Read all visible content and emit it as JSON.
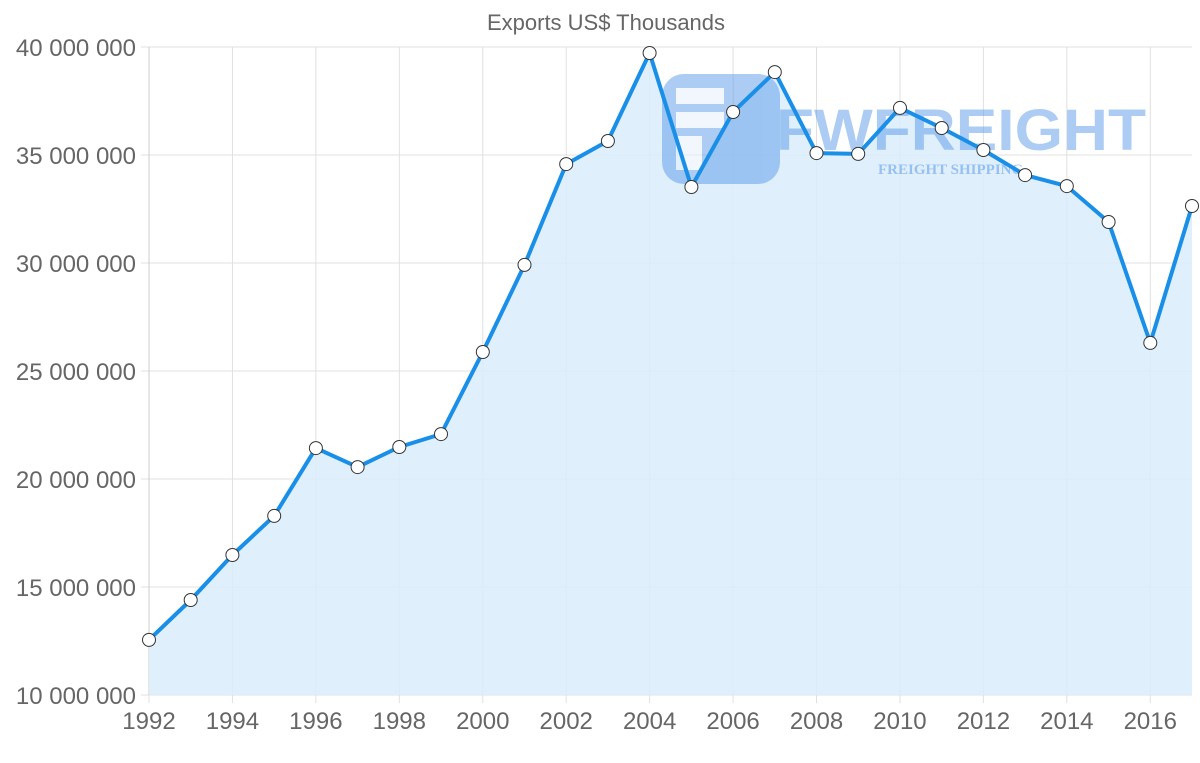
{
  "chart_data": {
    "type": "area",
    "title": "Exports US$ Thousands",
    "xlabel": "",
    "ylabel": "",
    "x": [
      1992,
      1993,
      1994,
      1995,
      1996,
      1997,
      1998,
      1999,
      2000,
      2001,
      2002,
      2003,
      2004,
      2005,
      2006,
      2007,
      2008,
      2009,
      2010,
      2011,
      2012,
      2013,
      2014,
      2015,
      2016,
      2017
    ],
    "series": [
      {
        "name": "Exports US$ Thousands",
        "values": [
          12550000,
          14400000,
          16480000,
          18290000,
          21430000,
          20550000,
          21480000,
          22080000,
          25880000,
          29910000,
          34580000,
          35650000,
          39720000,
          33520000,
          36990000,
          38840000,
          35090000,
          35050000,
          37180000,
          36250000,
          35230000,
          34070000,
          33560000,
          31900000,
          26300000,
          32640000
        ]
      }
    ],
    "ylim": [
      10000000,
      40000000
    ],
    "xlim": [
      1992,
      2017
    ],
    "y_ticks": [
      "10 000 000",
      "15 000 000",
      "20 000 000",
      "25 000 000",
      "30 000 000",
      "35 000 000",
      "40 000 000"
    ],
    "x_ticks": [
      "1992",
      "1994",
      "1996",
      "1998",
      "2000",
      "2002",
      "2004",
      "2006",
      "2008",
      "2010",
      "2012",
      "2014",
      "2016"
    ],
    "grid": true,
    "legend": "none",
    "colors": {
      "line": "#1a8fe8",
      "fill": "#d9ecfc",
      "point_fill": "#ffffff",
      "point_stroke": "#333333",
      "grid": "#e0e0e0",
      "text": "#666666"
    }
  },
  "watermark": {
    "brand": "FWFREIGHT",
    "tagline": "FREIGHT SHIPPING"
  }
}
